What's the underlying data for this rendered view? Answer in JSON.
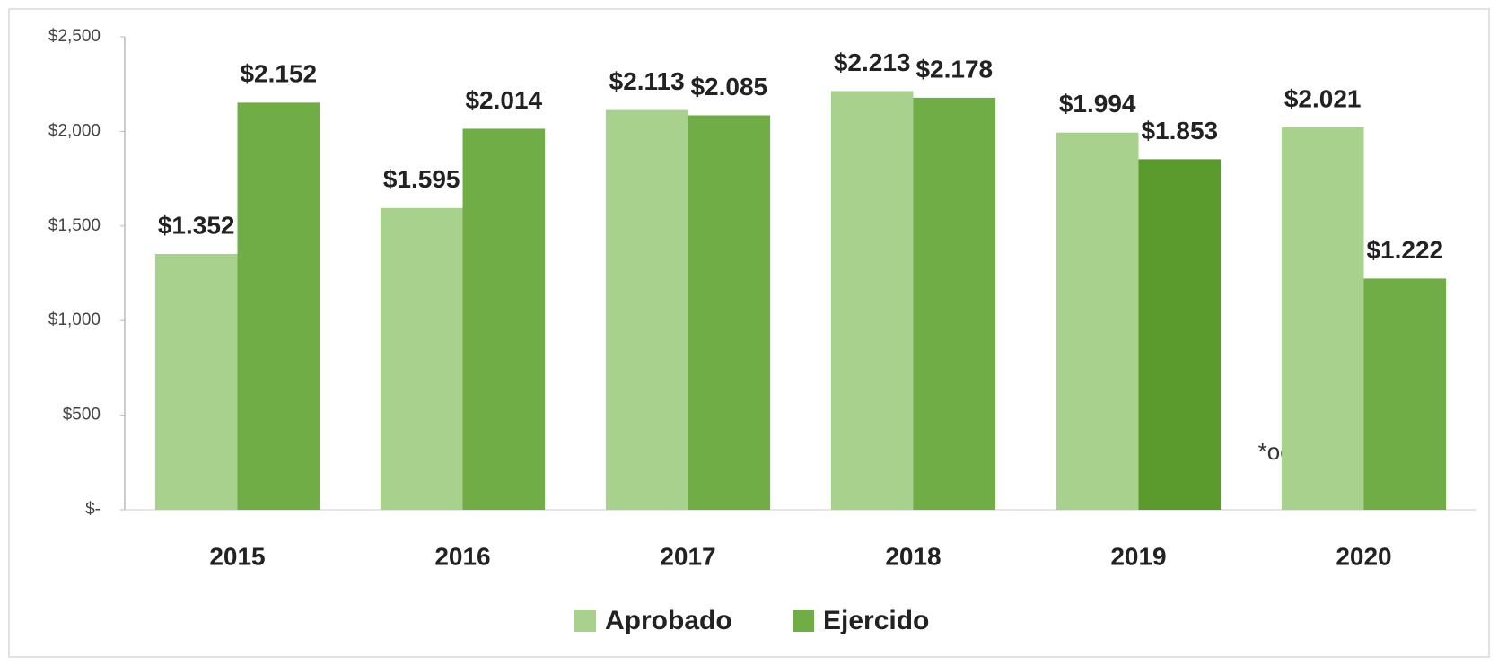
{
  "chart_data": {
    "type": "bar",
    "categories": [
      "2015",
      "2016",
      "2017",
      "2018",
      "2019",
      "2020"
    ],
    "series": [
      {
        "name": "Aprobado",
        "color": "#a9d18e",
        "values": [
          1352,
          1595,
          2113,
          2213,
          1994,
          2021
        ],
        "value_labels": [
          "$1.352",
          "$1.595",
          "$2.113",
          "$2.213",
          "$1.994",
          "$2.021"
        ]
      },
      {
        "name": "Ejercido",
        "color": "#70ad47",
        "colors": [
          "#70ad47",
          "#70ad47",
          "#70ad47",
          "#70ad47",
          "#5b9a2c",
          "#70ad47"
        ],
        "values": [
          2152,
          2014,
          2085,
          2178,
          1853,
          1222
        ],
        "value_labels": [
          "$2.152",
          "$2.014",
          "$2.085",
          "$2.178",
          "$1.853",
          "$1.222"
        ]
      }
    ],
    "ylim": [
      0,
      2500
    ],
    "yticks": [
      {
        "value": 0,
        "label": "$-"
      },
      {
        "value": 500,
        "label": "$500"
      },
      {
        "value": 1000,
        "label": "$1,000"
      },
      {
        "value": 1500,
        "label": "$1,500"
      },
      {
        "value": 2000,
        "label": "$2,000"
      },
      {
        "value": 2500,
        "label": "$2,500"
      }
    ],
    "annotation": "*octubre",
    "legend": "bottom"
  }
}
